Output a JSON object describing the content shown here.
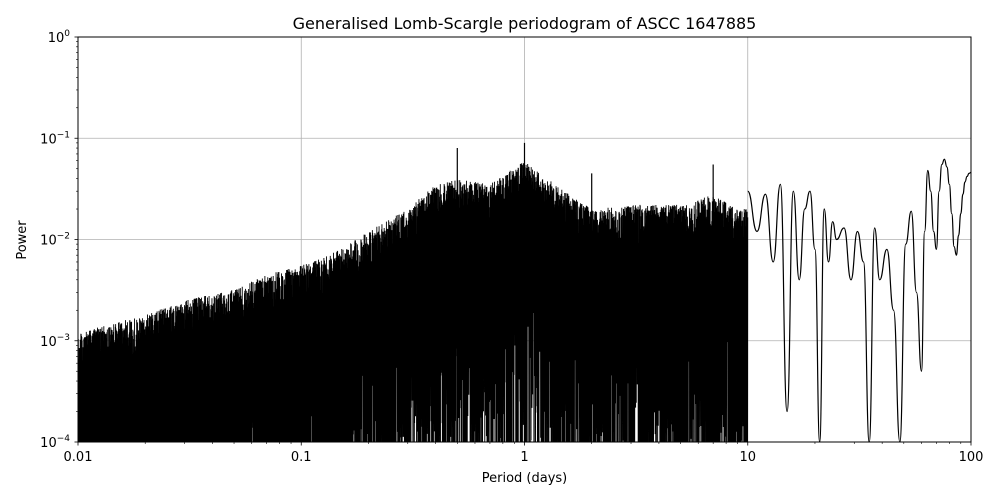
{
  "chart_data": {
    "type": "line",
    "title": "Generalised Lomb-Scargle periodogram of ASCC 1647885",
    "xlabel": "Period (days)",
    "ylabel": "Power",
    "xscale": "log",
    "yscale": "log",
    "xlim": [
      0.01,
      100
    ],
    "ylim": [
      0.0001,
      1
    ],
    "grid": true,
    "x_ticks": [
      {
        "value": 0.01,
        "label": "0.01"
      },
      {
        "value": 0.1,
        "label": "0.1"
      },
      {
        "value": 1,
        "label": "1"
      },
      {
        "value": 10,
        "label": "10"
      },
      {
        "value": 100,
        "label": "100"
      }
    ],
    "y_ticks": [
      {
        "value": 0.0001,
        "base": "10",
        "exp": "−4"
      },
      {
        "value": 0.001,
        "base": "10",
        "exp": "−3"
      },
      {
        "value": 0.01,
        "base": "10",
        "exp": "−2"
      },
      {
        "value": 0.1,
        "base": "10",
        "exp": "−1"
      },
      {
        "value": 1,
        "base": "10",
        "exp": "0"
      }
    ],
    "line_color": "#000000",
    "series": [
      {
        "envelope": {
          "period": [
            0.01,
            0.02,
            0.03,
            0.05,
            0.07,
            0.1,
            0.15,
            0.2,
            0.3,
            0.4,
            0.5,
            0.7,
            1.0,
            1.5,
            2.0,
            3.0,
            5.0,
            7.0,
            9.0
          ],
          "peak_power": [
            0.0012,
            0.0018,
            0.0025,
            0.0032,
            0.0045,
            0.0055,
            0.008,
            0.012,
            0.02,
            0.035,
            0.04,
            0.035,
            0.06,
            0.03,
            0.02,
            0.022,
            0.022,
            0.028,
            0.02
          ]
        },
        "peaks": [
          {
            "period": 0.5,
            "power": 0.08
          },
          {
            "period": 1.0,
            "power": 0.09
          },
          {
            "period": 2.0,
            "power": 0.045
          },
          {
            "period": 7.0,
            "power": 0.055
          }
        ],
        "long_period": {
          "period": [
            10,
            11,
            12,
            13,
            14,
            15,
            16,
            17,
            18,
            19,
            20,
            21,
            22,
            23,
            24,
            25,
            27,
            29,
            31,
            33,
            35,
            37,
            39,
            42,
            45,
            48,
            51,
            54,
            57,
            60,
            62,
            64,
            66,
            68,
            70,
            72,
            74,
            76,
            78,
            80,
            82,
            84,
            86,
            88,
            90,
            92,
            94,
            96,
            98,
            100
          ],
          "power": [
            0.03,
            0.012,
            0.028,
            0.006,
            0.035,
            0.0002,
            0.03,
            0.004,
            0.02,
            0.03,
            0.008,
            0.0001,
            0.02,
            0.006,
            0.015,
            0.01,
            0.013,
            0.004,
            0.012,
            0.006,
            0.0001,
            0.013,
            0.004,
            0.008,
            0.002,
            0.0001,
            0.009,
            0.019,
            0.003,
            0.0005,
            0.012,
            0.048,
            0.03,
            0.012,
            0.008,
            0.03,
            0.055,
            0.062,
            0.052,
            0.035,
            0.018,
            0.0085,
            0.007,
            0.011,
            0.018,
            0.028,
            0.037,
            0.042,
            0.045,
            0.046
          ]
        }
      }
    ]
  }
}
